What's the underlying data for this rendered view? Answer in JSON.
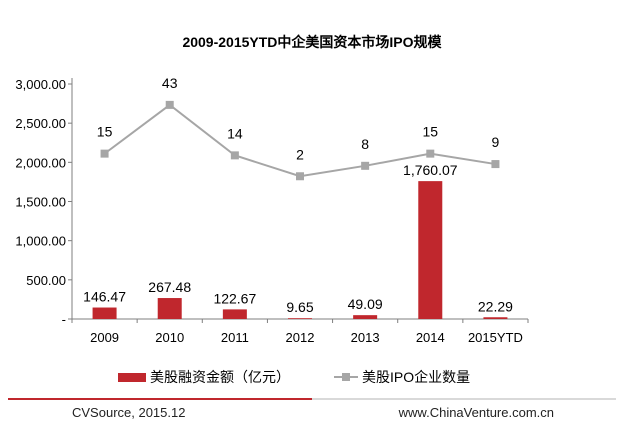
{
  "chart_data": {
    "type": "bar+line",
    "title": "2009-2015YTD中企美国资本市场IPO规模",
    "categories": [
      "2009",
      "2010",
      "2011",
      "2012",
      "2013",
      "2014",
      "2015YTD"
    ],
    "series": [
      {
        "name": "美股融资金额（亿元）",
        "type": "bar",
        "axis": "left",
        "color": "#c0272d",
        "values": [
          146.47,
          267.48,
          122.67,
          9.65,
          49.09,
          1760.07,
          22.29
        ],
        "labels": [
          "146.47",
          "267.48",
          "122.67",
          "9.65",
          "49.09",
          "1,760.07",
          "22.29"
        ]
      },
      {
        "name": "美股IPO企业数量",
        "type": "line",
        "axis": "right-hidden",
        "color": "#a6a6a6",
        "values": [
          15,
          43,
          14,
          2,
          8,
          15,
          9
        ],
        "labels": [
          "15",
          "43",
          "14",
          "2",
          "8",
          "15",
          "9"
        ]
      }
    ],
    "yaxis_left": {
      "min": 0,
      "max": 3000,
      "ticks": [
        0,
        500,
        1000,
        1500,
        2000,
        2500,
        3000
      ],
      "tick_labels": [
        "-",
        "500.00",
        "1,000.00",
        "1,500.00",
        "2,000.00",
        "2,500.00",
        "3,000.00"
      ]
    },
    "yaxis_right": {
      "min": -80,
      "max": 55
    },
    "grid": false,
    "legend_position": "bottom"
  },
  "footer": {
    "source": "CVSource, 2015.12",
    "website": "www.ChinaVenture.com.cn"
  }
}
